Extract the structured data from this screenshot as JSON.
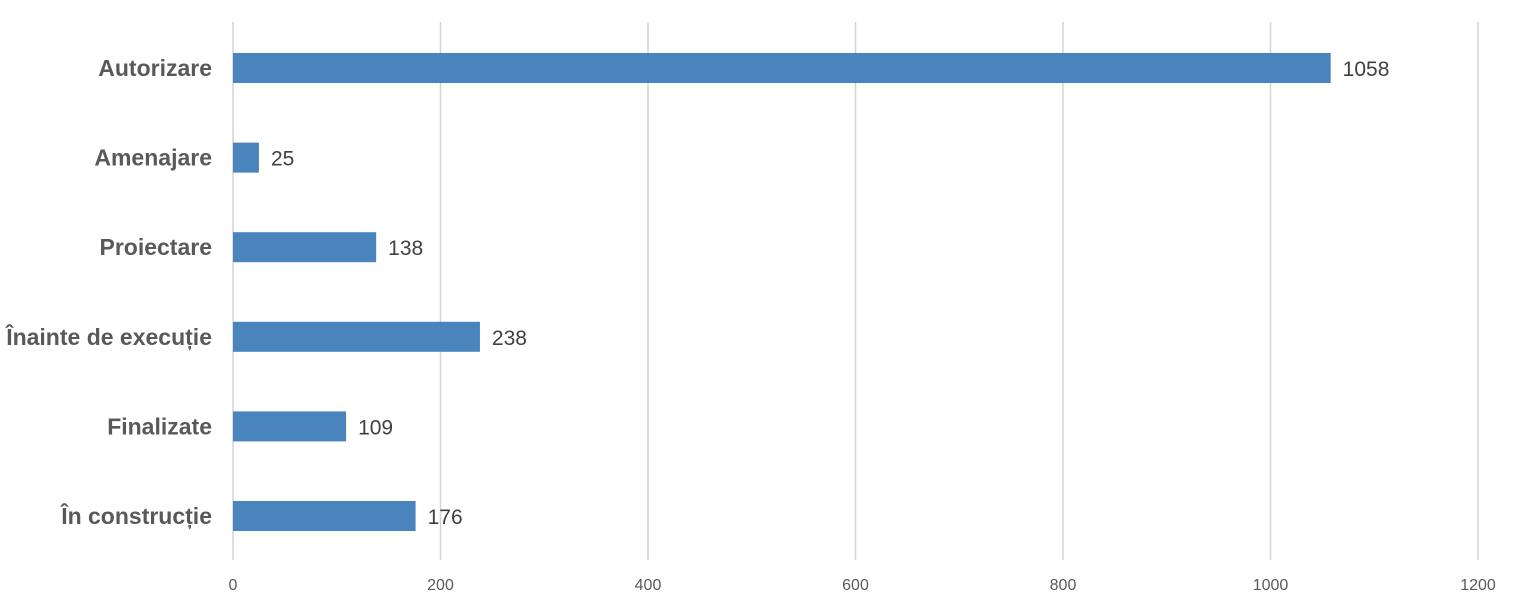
{
  "chart_data": {
    "type": "bar",
    "orientation": "horizontal",
    "title": "",
    "xlabel": "",
    "ylabel": "",
    "categories": [
      "Autorizare",
      "Amenajare",
      "Proiectare",
      "Înainte de execuție",
      "Finalizate",
      "În construcție"
    ],
    "values": [
      1058,
      25,
      138,
      238,
      109,
      176
    ],
    "xlim": [
      0,
      1200
    ],
    "xticks": [
      0,
      200,
      400,
      600,
      800,
      1000,
      1200
    ],
    "xtick_labels": [
      "0",
      "200",
      "400",
      "600",
      "800",
      "1000",
      "1200"
    ],
    "grid": "vertical",
    "legend": "none",
    "data_labels": true,
    "bar_color": "#4a84bd"
  }
}
